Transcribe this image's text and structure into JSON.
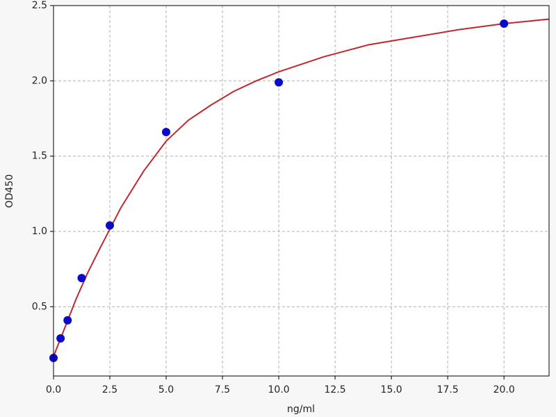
{
  "chart_data": {
    "type": "scatter",
    "x_label": "ng/ml",
    "y_label": "OD450",
    "xlim": [
      0,
      22
    ],
    "ylim": [
      0.04,
      2.5
    ],
    "xticks": [
      {
        "value": 0,
        "label": "0.0"
      },
      {
        "value": 2.5,
        "label": "2.5"
      },
      {
        "value": 5,
        "label": "5.0"
      },
      {
        "value": 7.5,
        "label": "7.5"
      },
      {
        "value": 10,
        "label": "10.0"
      },
      {
        "value": 12.5,
        "label": "12.5"
      },
      {
        "value": 15,
        "label": "15.0"
      },
      {
        "value": 17.5,
        "label": "17.5"
      },
      {
        "value": 20,
        "label": "20.0"
      }
    ],
    "yticks": [
      {
        "value": 0.5,
        "label": "0.5"
      },
      {
        "value": 1,
        "label": "1.0"
      },
      {
        "value": 1.5,
        "label": "1.5"
      },
      {
        "value": 2,
        "label": "2.0"
      },
      {
        "value": 2.5,
        "label": "2.5"
      }
    ],
    "grid": true,
    "series": [
      {
        "type": "scatter",
        "color": "#0a0acc",
        "x": [
          0,
          0.3125,
          0.625,
          1.25,
          2.5,
          5,
          10,
          20
        ],
        "values": [
          0.16,
          0.29,
          0.41,
          0.69,
          1.04,
          1.66,
          1.99,
          2.38
        ]
      },
      {
        "type": "line",
        "color": "#c0272d",
        "x": [
          0,
          0.5,
          1,
          1.5,
          2,
          3,
          4,
          5,
          6,
          7,
          8,
          9,
          10,
          12,
          14,
          16,
          18,
          20,
          22
        ],
        "values": [
          0.17,
          0.36,
          0.55,
          0.72,
          0.87,
          1.16,
          1.4,
          1.6,
          1.74,
          1.84,
          1.93,
          2.0,
          2.06,
          2.16,
          2.24,
          2.29,
          2.34,
          2.38,
          2.41
        ]
      }
    ]
  }
}
